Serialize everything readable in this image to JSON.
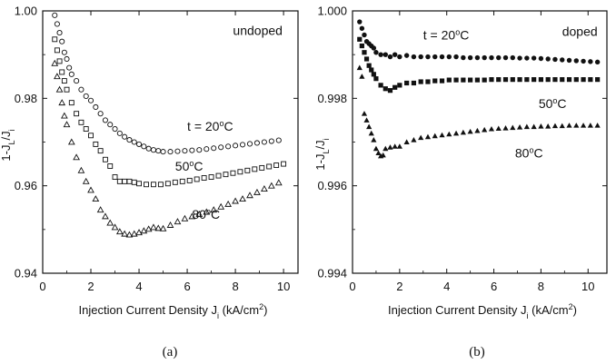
{
  "colors": {
    "ink": "#111111",
    "background": "#ffffff"
  },
  "chart_data": [
    {
      "type": "scatter",
      "panel_label": "(a)",
      "xlabel": "Injection Current Density J",
      "xlabel_sub": "i",
      "xlabel_units": "(kA/cm",
      "xlabel_units_sup": "2",
      "xlabel_units_close": ")",
      "ylabel": "1-J",
      "ylabel_sub1": "L",
      "ylabel_mid": "/J",
      "ylabel_sub2": "i",
      "xlim": [
        0,
        10.6
      ],
      "ylim": [
        0.94,
        1.0
      ],
      "xticks": [
        0,
        2,
        4,
        6,
        8,
        10
      ],
      "xtick_labels": [
        "0",
        "2",
        "4",
        "6",
        "8",
        "10"
      ],
      "yticks": [
        0.94,
        0.96,
        0.98,
        1.0
      ],
      "ytick_labels": [
        "0.94",
        "0.96",
        "0.98",
        "1.00"
      ],
      "grid": false,
      "annotations": [
        {
          "text": "undoped",
          "x": 7.9,
          "y": 0.9945
        },
        {
          "text": "t = 20",
          "sup": "o",
          "tail": "C",
          "x": 6.0,
          "y": 0.9726
        },
        {
          "text": "50",
          "sup": "o",
          "tail": "C",
          "x": 5.5,
          "y": 0.9635
        },
        {
          "text": "80",
          "sup": "o",
          "tail": "C",
          "x": 6.2,
          "y": 0.9525
        }
      ],
      "series": [
        {
          "marker": "circle",
          "x": [
            0.5,
            0.6,
            0.7,
            0.8,
            0.9,
            1.0,
            1.1,
            1.2,
            1.4,
            1.6,
            1.8,
            2.0,
            2.2,
            2.4,
            2.6,
            2.8,
            3.0,
            3.2,
            3.4,
            3.6,
            3.8,
            4.0,
            4.2,
            4.4,
            4.6,
            4.8,
            5.0,
            5.3,
            5.6,
            5.9,
            6.2,
            6.5,
            6.8,
            7.1,
            7.4,
            7.7,
            8.0,
            8.3,
            8.6,
            8.9,
            9.2,
            9.5,
            9.8
          ],
          "y": [
            0.999,
            0.997,
            0.995,
            0.993,
            0.9905,
            0.989,
            0.987,
            0.9855,
            0.984,
            0.982,
            0.9805,
            0.9795,
            0.978,
            0.9765,
            0.975,
            0.974,
            0.973,
            0.972,
            0.9712,
            0.9705,
            0.97,
            0.9695,
            0.969,
            0.9685,
            0.9682,
            0.968,
            0.9678,
            0.9678,
            0.9679,
            0.968,
            0.9681,
            0.9682,
            0.9684,
            0.9686,
            0.9688,
            0.969,
            0.9692,
            0.9694,
            0.9696,
            0.9698,
            0.97,
            0.9702,
            0.9704
          ]
        },
        {
          "marker": "square",
          "x": [
            0.5,
            0.6,
            0.7,
            0.8,
            0.9,
            1.0,
            1.2,
            1.4,
            1.6,
            1.8,
            2.0,
            2.2,
            2.4,
            2.6,
            2.8,
            3.0,
            3.2,
            3.4,
            3.6,
            3.8,
            4.0,
            4.3,
            4.6,
            4.9,
            5.2,
            5.5,
            5.8,
            6.1,
            6.4,
            6.7,
            7.0,
            7.3,
            7.6,
            7.9,
            8.2,
            8.5,
            8.8,
            9.1,
            9.4,
            9.7,
            10.0
          ],
          "y": [
            0.9935,
            0.991,
            0.9885,
            0.986,
            0.984,
            0.982,
            0.979,
            0.9765,
            0.9745,
            0.973,
            0.9715,
            0.9695,
            0.968,
            0.966,
            0.9645,
            0.962,
            0.961,
            0.961,
            0.961,
            0.9608,
            0.9605,
            0.9603,
            0.9603,
            0.9603,
            0.9605,
            0.9608,
            0.961,
            0.9612,
            0.9615,
            0.9618,
            0.962,
            0.9623,
            0.9626,
            0.9629,
            0.9632,
            0.9635,
            0.9638,
            0.9641,
            0.9644,
            0.9647,
            0.965
          ]
        },
        {
          "marker": "triangle",
          "x": [
            0.5,
            0.6,
            0.7,
            0.8,
            0.9,
            1.0,
            1.2,
            1.4,
            1.6,
            1.8,
            2.0,
            2.2,
            2.4,
            2.6,
            2.8,
            3.0,
            3.2,
            3.4,
            3.6,
            3.8,
            4.0,
            4.2,
            4.4,
            4.6,
            4.8,
            5.0,
            5.3,
            5.6,
            5.9,
            6.2,
            6.5,
            6.8,
            7.1,
            7.4,
            7.7,
            8.0,
            8.3,
            8.6,
            8.9,
            9.2,
            9.5,
            9.8
          ],
          "y": [
            0.988,
            0.985,
            0.982,
            0.979,
            0.976,
            0.974,
            0.97,
            0.9665,
            0.9635,
            0.961,
            0.959,
            0.957,
            0.9545,
            0.953,
            0.9515,
            0.9505,
            0.9495,
            0.949,
            0.9488,
            0.949,
            0.9493,
            0.9497,
            0.9501,
            0.9505,
            0.9503,
            0.9502,
            0.951,
            0.9518,
            0.9525,
            0.953,
            0.9535,
            0.954,
            0.9545,
            0.9552,
            0.9558,
            0.9565,
            0.957,
            0.9578,
            0.9585,
            0.9593,
            0.96,
            0.9607
          ]
        }
      ]
    },
    {
      "type": "scatter",
      "panel_label": "(b)",
      "xlabel": "Injection Current Density J",
      "xlabel_sub": "i",
      "xlabel_units": "(kA/cm",
      "xlabel_units_sup": "2",
      "xlabel_units_close": ")",
      "ylabel": "1-J",
      "ylabel_sub1": "L",
      "ylabel_mid": "/J",
      "ylabel_sub2": "i",
      "xlim": [
        0,
        10.8
      ],
      "ylim": [
        0.994,
        1.0
      ],
      "xticks": [
        0,
        2,
        4,
        6,
        8,
        10
      ],
      "xtick_labels": [
        "0",
        "2",
        "4",
        "6",
        "8",
        "10"
      ],
      "yticks": [
        0.994,
        0.996,
        0.998,
        1.0
      ],
      "ytick_labels": [
        "0.994",
        "0.996",
        "0.998",
        "1.000"
      ],
      "grid": false,
      "annotations": [
        {
          "text": "doped",
          "x": 8.9,
          "y": 0.99943
        },
        {
          "text": "t = 20",
          "sup": "o",
          "tail": "C",
          "x": 3.0,
          "y": 0.99935
        },
        {
          "text": "50",
          "sup": "o",
          "tail": "C",
          "x": 7.9,
          "y": 0.99778
        },
        {
          "text": "80",
          "sup": "o",
          "tail": "C",
          "x": 6.9,
          "y": 0.99665
        }
      ],
      "series": [
        {
          "marker": "filled-circle",
          "x": [
            0.3,
            0.4,
            0.5,
            0.6,
            0.7,
            0.8,
            0.9,
            1.0,
            1.2,
            1.4,
            1.6,
            1.8,
            2.0,
            2.3,
            2.6,
            2.9,
            3.2,
            3.5,
            3.8,
            4.1,
            4.4,
            4.7,
            5.0,
            5.3,
            5.6,
            5.9,
            6.2,
            6.5,
            6.8,
            7.1,
            7.4,
            7.7,
            8.0,
            8.3,
            8.6,
            8.9,
            9.2,
            9.5,
            9.8,
            10.1,
            10.4
          ],
          "y": [
            0.99975,
            0.9996,
            0.99945,
            0.9993,
            0.99925,
            0.9992,
            0.99915,
            0.99905,
            0.999,
            0.999,
            0.99895,
            0.999,
            0.99895,
            0.99898,
            0.99895,
            0.99895,
            0.99895,
            0.99895,
            0.99895,
            0.99895,
            0.99895,
            0.99893,
            0.99893,
            0.99893,
            0.99893,
            0.99893,
            0.99893,
            0.99893,
            0.99893,
            0.99892,
            0.99892,
            0.99892,
            0.99891,
            0.9989,
            0.99889,
            0.99888,
            0.99887,
            0.99886,
            0.99885,
            0.99884,
            0.99883
          ]
        },
        {
          "marker": "filled-square",
          "x": [
            0.3,
            0.4,
            0.5,
            0.6,
            0.7,
            0.8,
            0.9,
            1.0,
            1.2,
            1.4,
            1.6,
            1.8,
            2.0,
            2.3,
            2.6,
            2.9,
            3.2,
            3.5,
            3.8,
            4.1,
            4.4,
            4.7,
            5.0,
            5.3,
            5.6,
            5.9,
            6.2,
            6.5,
            6.8,
            7.1,
            7.4,
            7.7,
            8.0,
            8.3,
            8.6,
            8.9,
            9.2,
            9.5,
            9.8,
            10.1,
            10.4
          ],
          "y": [
            0.99935,
            0.9992,
            0.99905,
            0.9989,
            0.99875,
            0.99865,
            0.99855,
            0.99845,
            0.9983,
            0.99822,
            0.99818,
            0.99825,
            0.9983,
            0.99835,
            0.99835,
            0.99838,
            0.99838,
            0.9984,
            0.9984,
            0.99842,
            0.99842,
            0.99842,
            0.99842,
            0.99842,
            0.99842,
            0.99843,
            0.99843,
            0.99843,
            0.99843,
            0.99843,
            0.99843,
            0.99843,
            0.99843,
            0.99843,
            0.99843,
            0.99843,
            0.99843,
            0.99843,
            0.99843,
            0.99843,
            0.99843
          ]
        },
        {
          "marker": "filled-triangle",
          "x": [
            0.3,
            0.4,
            0.5,
            0.6,
            0.7,
            0.8,
            0.9,
            1.0,
            1.1,
            1.2,
            1.3,
            1.4,
            1.6,
            1.8,
            2.0,
            2.3,
            2.6,
            2.9,
            3.2,
            3.5,
            3.8,
            4.1,
            4.4,
            4.7,
            5.0,
            5.3,
            5.6,
            5.9,
            6.2,
            6.5,
            6.8,
            7.1,
            7.4,
            7.7,
            8.0,
            8.3,
            8.6,
            8.9,
            9.2,
            9.5,
            9.8,
            10.1,
            10.4
          ],
          "y": [
            0.9987,
            0.9985,
            0.99765,
            0.9975,
            0.99735,
            0.9972,
            0.99705,
            0.99685,
            0.99675,
            0.99668,
            0.9967,
            0.99685,
            0.99688,
            0.9969,
            0.9969,
            0.997,
            0.99705,
            0.9971,
            0.99712,
            0.99714,
            0.99716,
            0.99718,
            0.9972,
            0.99722,
            0.99724,
            0.99726,
            0.99728,
            0.9973,
            0.99731,
            0.99732,
            0.99733,
            0.99734,
            0.99735,
            0.99735,
            0.99736,
            0.99736,
            0.99737,
            0.99737,
            0.99738,
            0.99738,
            0.99738,
            0.99738,
            0.99738
          ]
        }
      ]
    }
  ]
}
